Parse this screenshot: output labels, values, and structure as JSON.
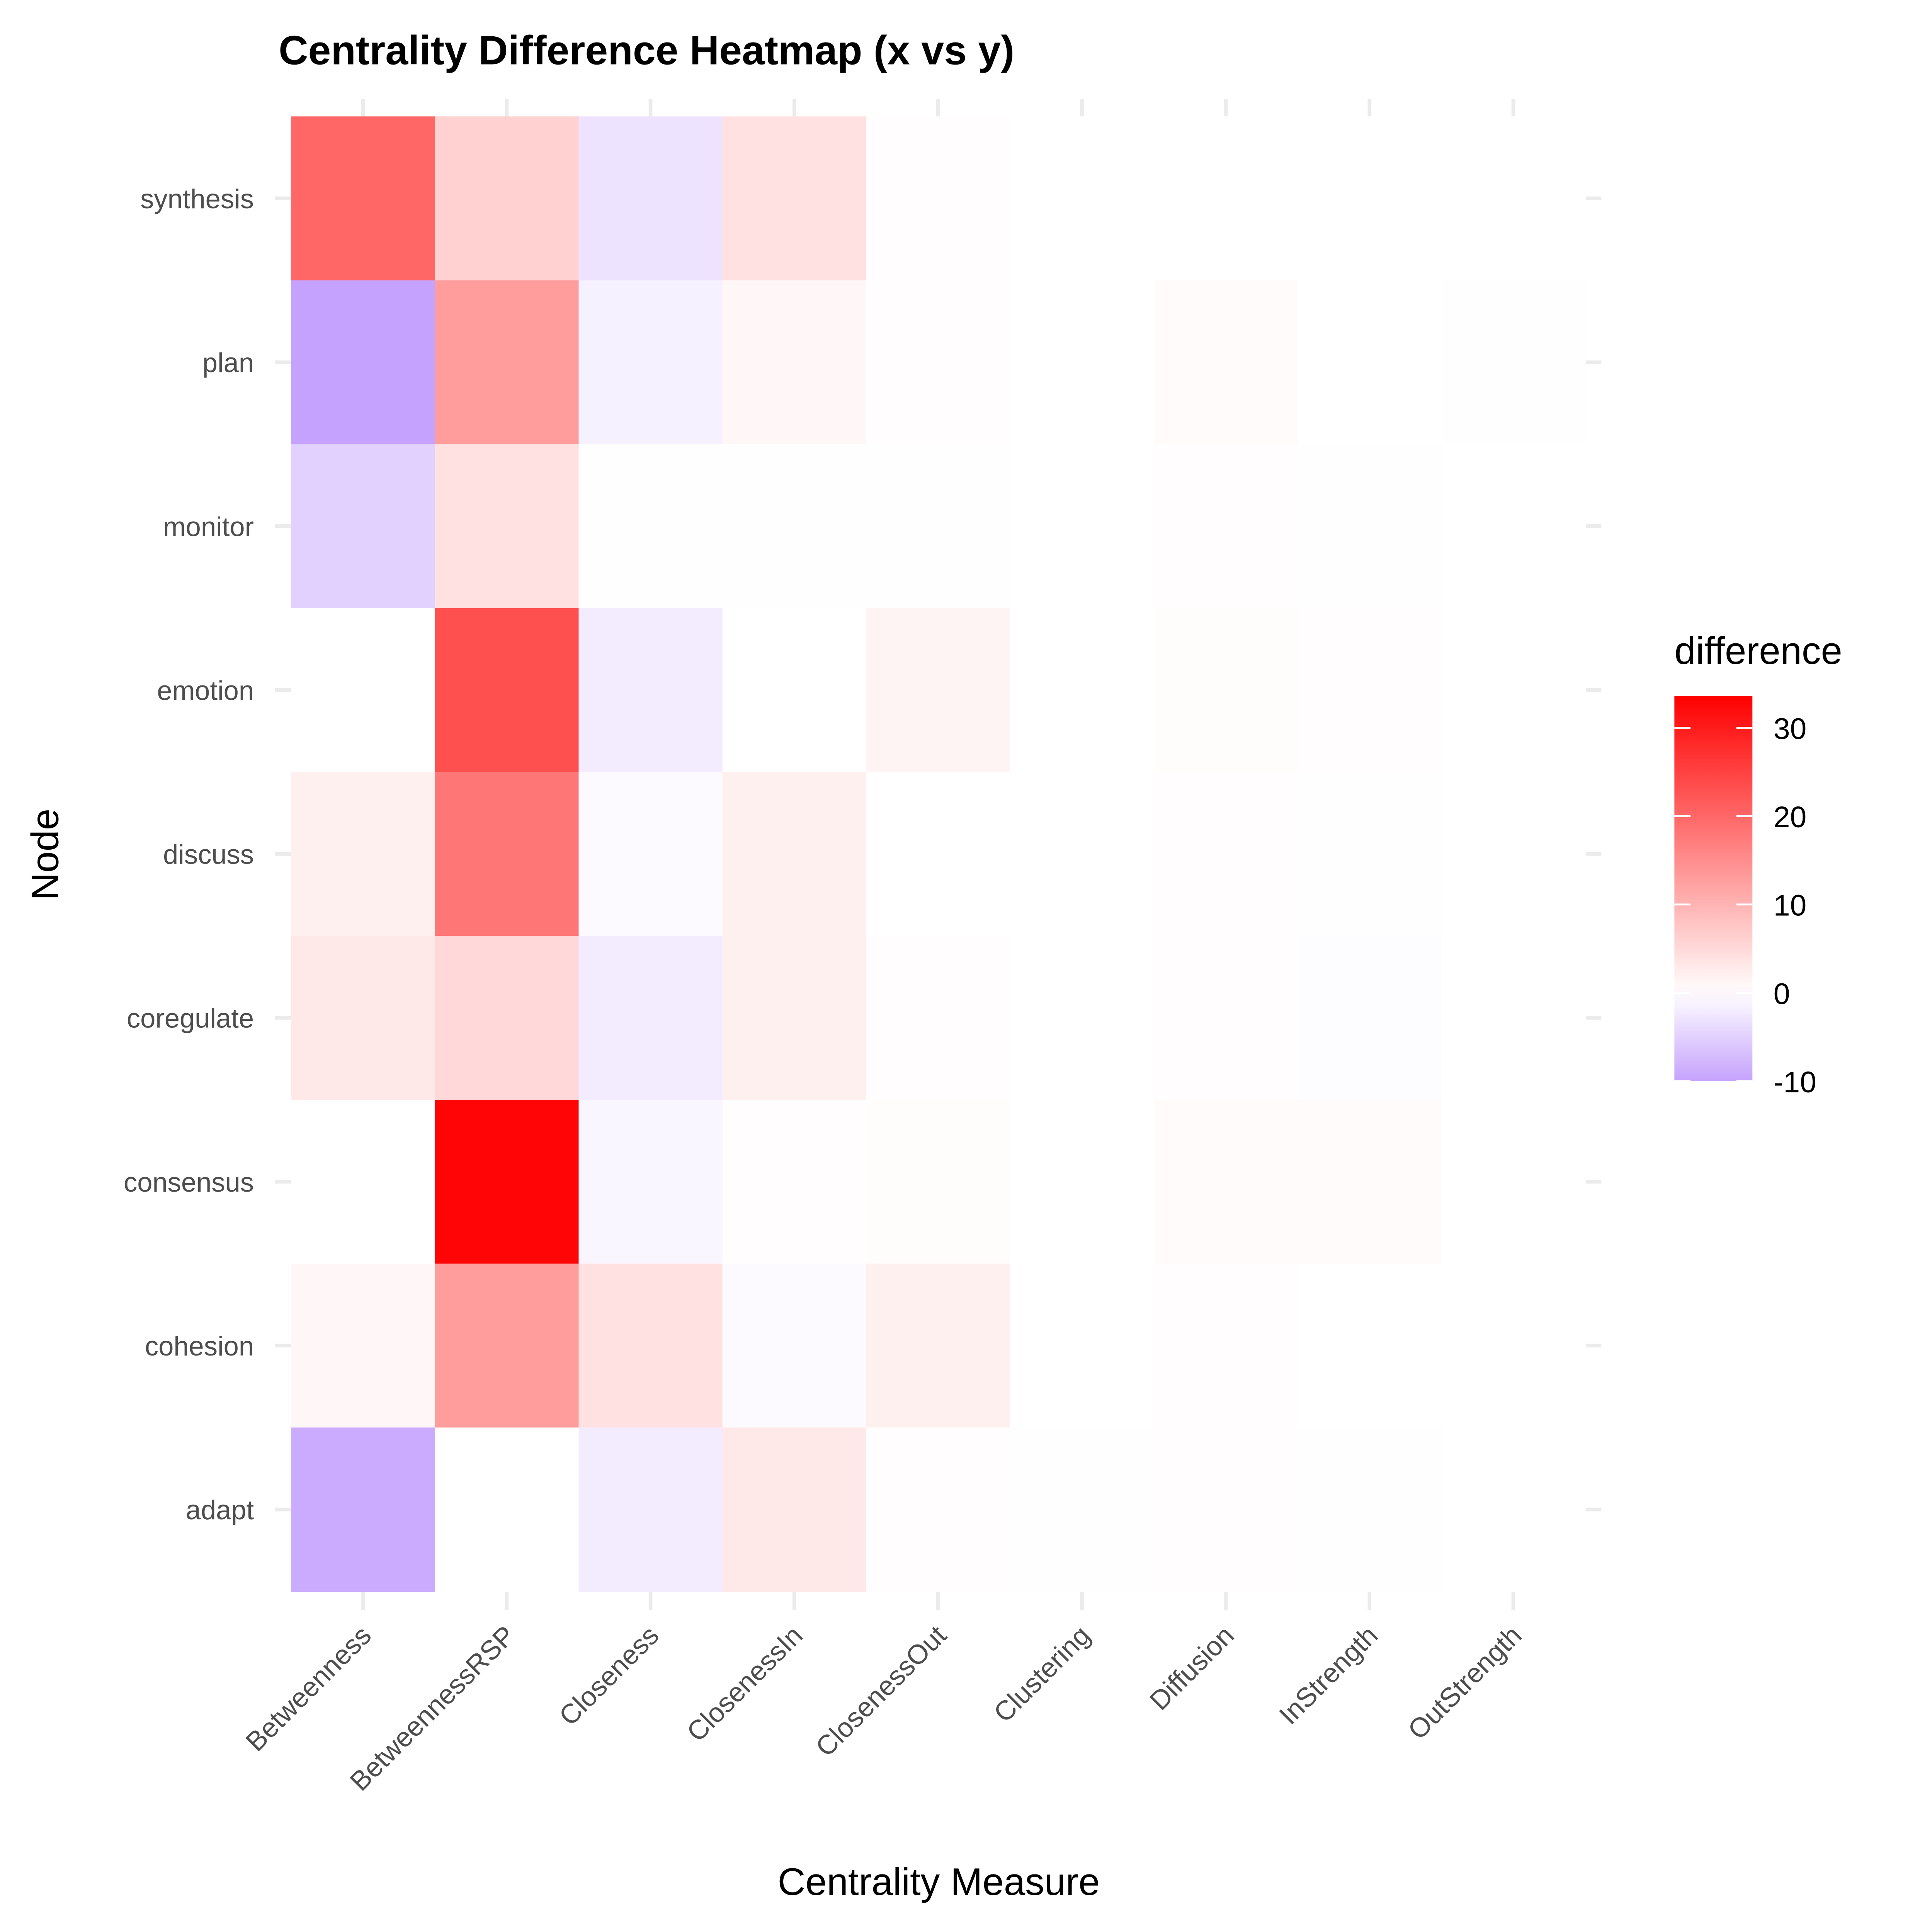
{
  "chart_data": {
    "type": "heatmap",
    "title": "Centrality Difference Heatmap (x vs y)",
    "xlabel": "Centrality Measure",
    "ylabel": "Node",
    "x_categories": [
      "Betweenness",
      "BetweennessRSP",
      "Closeness",
      "ClosenessIn",
      "ClosenessOut",
      "Clustering",
      "Diffusion",
      "InStrength",
      "OutStrength"
    ],
    "y_categories": [
      "synthesis",
      "plan",
      "monitor",
      "emotion",
      "discuss",
      "coregulate",
      "consensus",
      "cohesion",
      "adapt"
    ],
    "values": [
      [
        20,
        6,
        -3,
        4,
        0.3,
        0,
        0,
        0,
        0
      ],
      [
        -10,
        13,
        -1.5,
        1,
        0.3,
        0,
        0.5,
        0,
        0.1
      ],
      [
        -5,
        4,
        0.1,
        0.1,
        0.1,
        0,
        0.3,
        0.1,
        0
      ],
      [
        0,
        23,
        -2,
        0,
        1.5,
        0,
        0.4,
        0.2,
        0
      ],
      [
        2,
        18,
        -0.5,
        2,
        0,
        0,
        0.3,
        0.1,
        0
      ],
      [
        3,
        5,
        -2,
        2,
        0.2,
        0,
        0.3,
        -0.3,
        0
      ],
      [
        0,
        33,
        -1,
        0.3,
        0.4,
        0,
        0.5,
        0.5,
        0
      ],
      [
        1,
        13,
        4,
        -0.5,
        2,
        0,
        0.2,
        0,
        0
      ],
      [
        -9,
        0,
        -2,
        3,
        0.2,
        0.1,
        0.3,
        -0.2,
        0
      ]
    ],
    "legend": {
      "title": "difference",
      "position": "right",
      "ticks": [
        30,
        20,
        10,
        0,
        -10
      ],
      "tick_labels": [
        "30",
        "20",
        "10",
        "0",
        "-10"
      ],
      "range": [
        -10,
        33.6
      ]
    },
    "colors": {
      "low": "#C5A2FD",
      "mid": "#FFFFFF",
      "high": "#FF0000"
    },
    "grid": true
  }
}
